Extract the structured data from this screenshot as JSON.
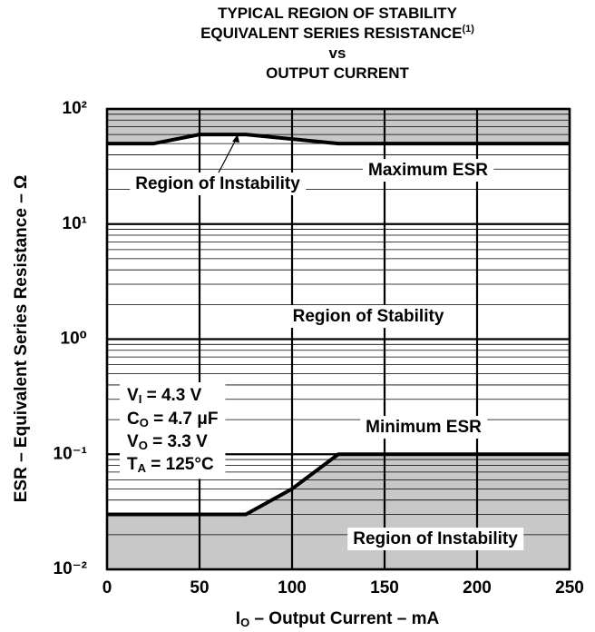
{
  "chart_data": {
    "type": "line",
    "title": [
      "TYPICAL REGION OF STABILITY",
      "EQUIVALENT SERIES RESISTANCE",
      "vs",
      "OUTPUT CURRENT"
    ],
    "title_footnote": "(1)",
    "x_label": {
      "symbol": "I",
      "subscript": "O",
      "text": " – Output Current – mA"
    },
    "y_label": "ESR – Equivalent Series Resistance – Ω",
    "xlim": [
      0,
      250
    ],
    "xticks": [
      0,
      50,
      100,
      150,
      200,
      250
    ],
    "ylim": [
      0.01,
      100
    ],
    "log_y": true,
    "yticks": [
      {
        "value": 100,
        "label": "10²"
      },
      {
        "value": 10,
        "label": "10¹"
      },
      {
        "value": 1,
        "label": "10⁰"
      },
      {
        "value": 0.1,
        "label": "10⁻¹"
      },
      {
        "value": 0.01,
        "label": "10⁻²"
      }
    ],
    "grid": true,
    "minor_grid": true,
    "series": [
      {
        "name": "Maximum ESR",
        "color": "#000000",
        "x": [
          0,
          25,
          50,
          75,
          125,
          250
        ],
        "values": [
          50,
          50,
          60,
          60,
          50,
          50
        ]
      },
      {
        "name": "Minimum ESR",
        "color": "#000000",
        "x": [
          0,
          75,
          100,
          125,
          250
        ],
        "values": [
          0.03,
          0.03,
          0.05,
          0.1,
          0.1
        ]
      }
    ],
    "region_color": "#c8c8c8",
    "regions": [
      "Region of Instability",
      "Region of Stability",
      "Region of Instability"
    ],
    "conditions": [
      {
        "symbol": "V",
        "subscript": "I",
        "text": " = 4.3 V"
      },
      {
        "symbol": "C",
        "subscript": "O",
        "text": " = 4.7 μF"
      },
      {
        "symbol": "V",
        "subscript": "O",
        "text": " = 3.3 V"
      },
      {
        "symbol": "T",
        "subscript": "A",
        "text": " = 125°C"
      }
    ]
  }
}
